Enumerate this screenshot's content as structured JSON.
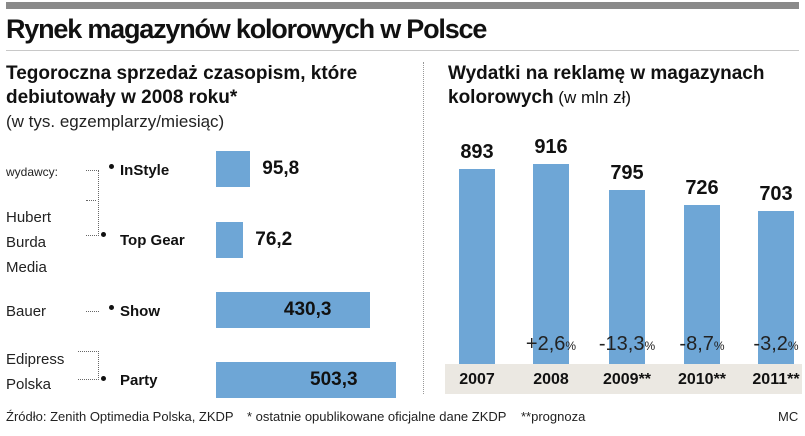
{
  "title": "Rynek magazynów kolorowych w Polsce",
  "left_panel": {
    "heading_line1": "Tegoroczna sprzedaż czasopism, które",
    "heading_line2": "debiutowały w 2008 roku*",
    "note": "(w tys. egzemplarzy/miesiąc)",
    "publishers_label": "wydawcy:",
    "publishers": [
      {
        "lines": [
          "Hubert",
          "Burda",
          "Media"
        ]
      },
      {
        "lines": [
          "Bauer"
        ]
      },
      {
        "lines": [
          "Edipress",
          "Polska"
        ]
      }
    ]
  },
  "right_panel": {
    "heading_line1": "Wydatki na reklamę w magazynach",
    "heading_bold2": "kolorowych",
    "heading_unit": " (w mln zł)"
  },
  "chart_data": [
    {
      "type": "bar",
      "orientation": "horizontal",
      "categories": [
        "InStyle",
        "Top Gear",
        "Show",
        "Party"
      ],
      "values": [
        95.8,
        76.2,
        430.3,
        503.3
      ],
      "value_labels": [
        "95,8",
        "76,2",
        "430,3",
        "503,3"
      ],
      "publishers": [
        "Hubert Burda Media",
        "Hubert Burda Media",
        "Bauer",
        "Edipress Polska"
      ],
      "color": "#6ea6d6"
    },
    {
      "type": "bar",
      "orientation": "vertical",
      "categories": [
        "2007",
        "2008",
        "2009**",
        "2010**",
        "2011**"
      ],
      "values": [
        893,
        916,
        795,
        726,
        703
      ],
      "value_labels": [
        "893",
        "916",
        "795",
        "726",
        "703"
      ],
      "changes": [
        "",
        "+2,6",
        "-13,3",
        "-8,7",
        "-3,2"
      ],
      "change_unit": "%",
      "color": "#6ea6d6"
    }
  ],
  "footer": {
    "source": "Źródło: Zenith Optimedia Polska, ZKDP",
    "note1": "* ostatnie opublikowane oficjalne dane ZKDP",
    "note2": "**prognoza",
    "credit": "MC"
  }
}
